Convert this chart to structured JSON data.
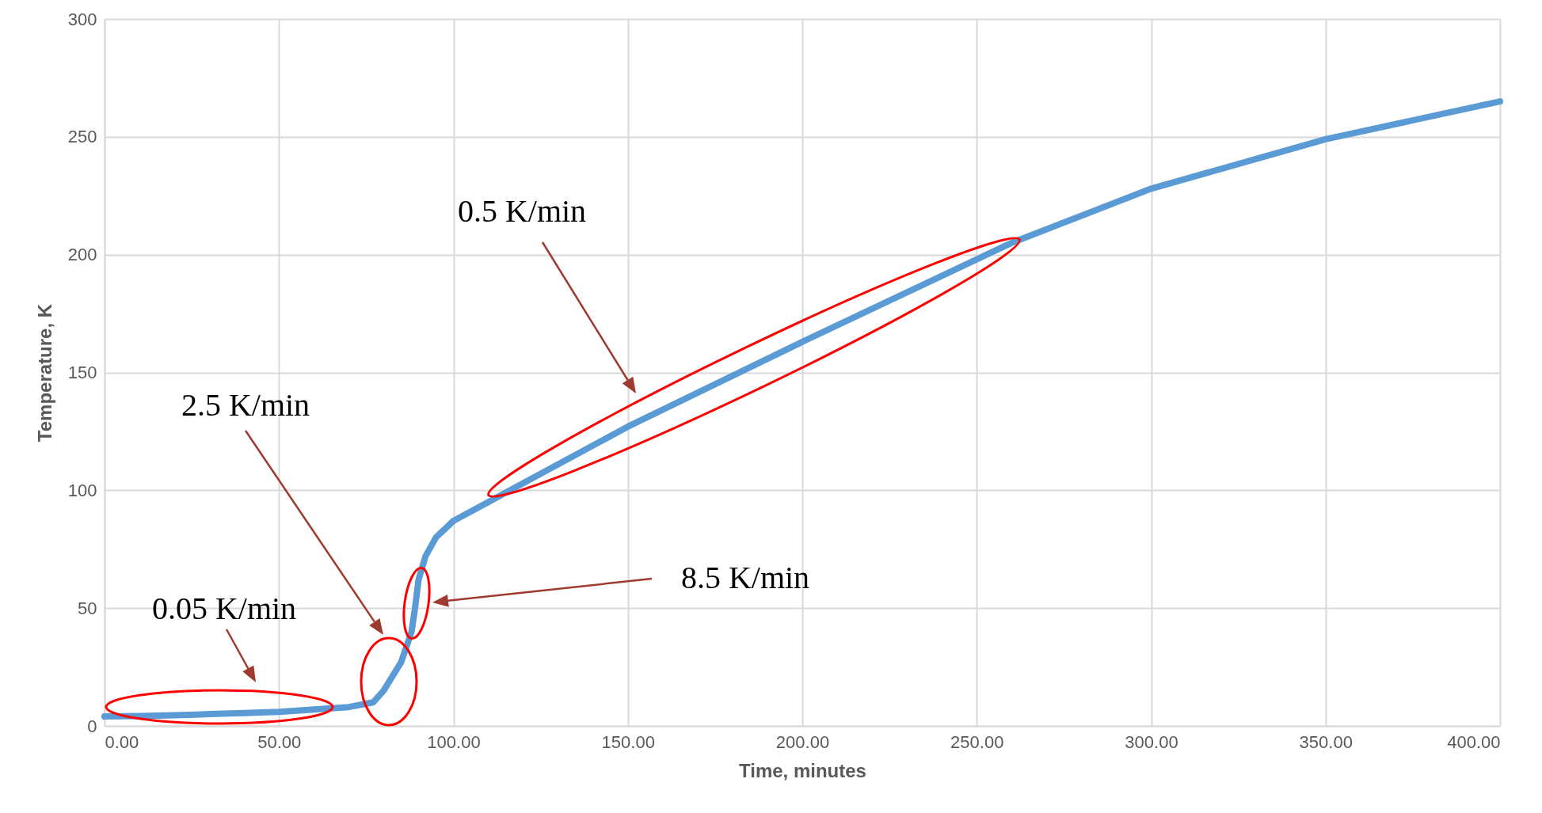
{
  "chart_data": {
    "type": "line",
    "xlabel": "Time, minutes",
    "ylabel": "Temperature, K",
    "x": [
      0,
      10,
      20,
      30,
      40,
      50,
      60,
      70,
      77,
      80,
      85,
      88,
      89,
      90,
      92,
      95,
      100,
      110,
      115,
      150,
      200,
      250,
      260,
      300,
      350,
      400
    ],
    "series": [
      {
        "color": "#5b9bd5",
        "values": [
          4,
          4.2,
          4.5,
          5,
          5.5,
          6,
          7,
          8,
          10,
          15,
          27,
          40,
          50,
          62,
          72,
          80,
          87,
          95,
          99,
          127,
          163,
          198,
          205,
          228,
          249,
          265
        ]
      }
    ],
    "xlim": [
      0,
      400
    ],
    "xticks": [
      {
        "value": 0,
        "label": "0.00"
      },
      {
        "value": 50,
        "label": "50.00"
      },
      {
        "value": 100,
        "label": "100.00"
      },
      {
        "value": 150,
        "label": "150.00"
      },
      {
        "value": 200,
        "label": "200.00"
      },
      {
        "value": 250,
        "label": "250.00"
      },
      {
        "value": 300,
        "label": "300.00"
      },
      {
        "value": 350,
        "label": "350.00"
      },
      {
        "value": 400,
        "label": "400.00"
      }
    ],
    "ylim": [
      0,
      300
    ],
    "yticks": [
      0,
      50,
      100,
      150,
      200,
      250,
      300
    ],
    "grid": true,
    "marker": "none",
    "line_style": "solid",
    "annotations": [
      "0.05 K/min",
      "2.5 K/min",
      "8.5 K/min",
      "0.5 K/min"
    ]
  }
}
